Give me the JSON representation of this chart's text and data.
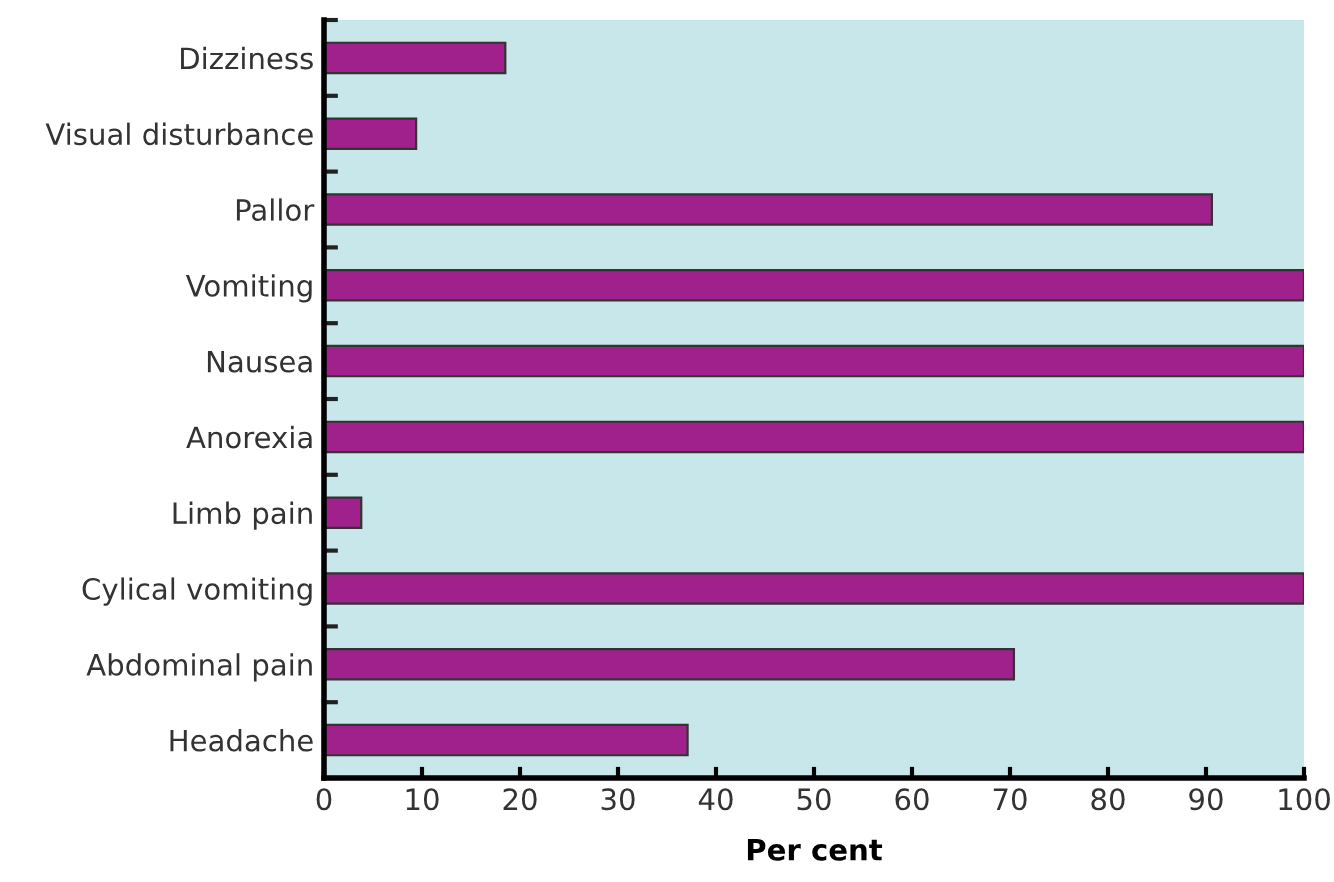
{
  "chart_data": {
    "type": "bar",
    "orientation": "horizontal",
    "xlabel": "Per cent",
    "categories": [
      "Dizziness",
      "Visual disturbance",
      "Pallor",
      "Vomiting",
      "Nausea",
      "Anorexia",
      "Limb pain",
      "Cylical vomiting",
      "Abdominal pain",
      "Headache"
    ],
    "values": [
      18.5,
      9.4,
      90.6,
      100,
      100,
      100,
      3.8,
      100,
      70.4,
      37.1
    ],
    "color": "#a0218b",
    "xlim": [
      0,
      100
    ],
    "xticks": [
      0,
      10,
      20,
      30,
      40,
      50,
      60,
      70,
      80,
      90,
      100
    ],
    "grid": false,
    "legend": false
  }
}
